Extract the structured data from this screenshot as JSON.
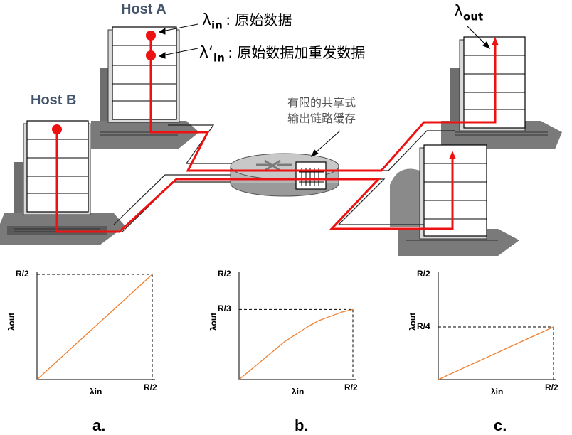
{
  "network": {
    "host_a": "Host A",
    "host_b": "Host B",
    "lambda_in_sym": "λ",
    "lambda_in_sub": "in",
    "lambda_in_desc": ": 原始数据",
    "lambda_in_prime_sym": "λ‘",
    "lambda_in_prime_sub": "in",
    "lambda_in_prime_desc": ": 原始数据加重发数据",
    "lambda_out_sym": "λ",
    "lambda_out_sub": "out",
    "router_line1": "有限的共享式",
    "router_line2": "输出链路缓存"
  },
  "colors": {
    "flow": "#ee1111",
    "curve": "#f08030",
    "host_label": "#44546a"
  },
  "chart_data": [
    {
      "type": "line",
      "panel_label": "a.",
      "xlabel": "λ’in",
      "ylabel": "λout",
      "x_tick_labels": [
        "R/2"
      ],
      "y_tick_labels": [
        "R/2"
      ],
      "xlim": [
        0,
        0.5
      ],
      "ylim": [
        0,
        0.5
      ],
      "series": [
        {
          "x": [
            0,
            0.5
          ],
          "y": [
            0,
            0.5
          ]
        }
      ],
      "guide_level": "R/2"
    },
    {
      "type": "line",
      "panel_label": "b.",
      "xlabel": "λ’in",
      "ylabel": "λout",
      "x_tick_labels": [
        "R/2"
      ],
      "y_tick_labels": [
        "R/2",
        "R/3"
      ],
      "xlim": [
        0,
        0.5
      ],
      "ylim": [
        0,
        0.5
      ],
      "series": [
        {
          "x": [
            0,
            0.1,
            0.2,
            0.3,
            0.35,
            0.4,
            0.45,
            0.5
          ],
          "y": [
            0,
            0.09,
            0.18,
            0.25,
            0.28,
            0.3,
            0.32,
            0.333
          ]
        }
      ],
      "guide_level": "R/3"
    },
    {
      "type": "line",
      "panel_label": "c.",
      "xlabel": "λ’in",
      "ylabel": "λout",
      "x_tick_labels": [
        "R/2"
      ],
      "y_tick_labels": [
        "R/2",
        "R/4"
      ],
      "xlim": [
        0,
        0.5
      ],
      "ylim": [
        0,
        0.5
      ],
      "series": [
        {
          "x": [
            0,
            0.5
          ],
          "y": [
            0,
            0.25
          ]
        }
      ],
      "guide_level": "R/4"
    }
  ]
}
